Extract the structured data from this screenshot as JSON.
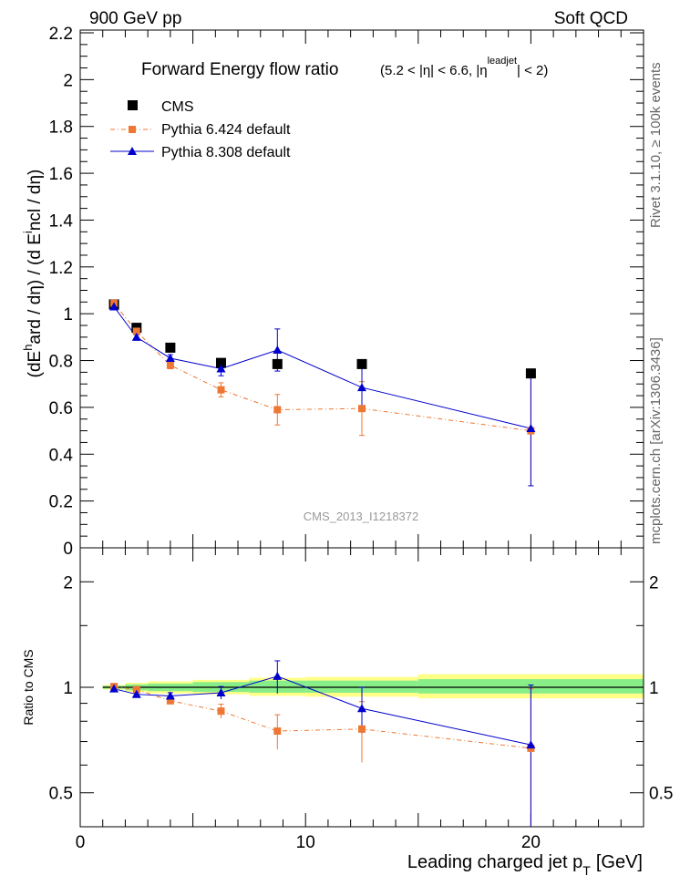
{
  "header": {
    "left": "900 GeV pp",
    "right": "Soft QCD"
  },
  "side_labels": {
    "rivet": "Rivet 3.1.10, ≥ 100k events",
    "mcplots": "mcplots.cern.ch [arXiv:1306.3436]"
  },
  "title": {
    "main": "Forward Energy flow ratio",
    "sub_prefix": "(5.2 < |η| < 6.6, |η",
    "sub_sup": "leadjet",
    "sub_suffix": "| < 2)"
  },
  "analysis_id": "CMS_2013_I1218372",
  "chart_data": [
    {
      "type": "scatter",
      "panel": "main",
      "ylabel": "(dE^hard / dη) / (d E^incl / dη)",
      "ylim": [
        0,
        2.2
      ],
      "xlim": [
        0,
        25
      ],
      "yticks": [
        {
          "v": 0,
          "label": "0"
        },
        {
          "v": 0.2,
          "label": "0.2"
        },
        {
          "v": 0.4,
          "label": "0.4"
        },
        {
          "v": 0.6,
          "label": "0.6"
        },
        {
          "v": 0.8,
          "label": "0.8"
        },
        {
          "v": 1.0,
          "label": "1"
        },
        {
          "v": 1.2,
          "label": "1.2"
        },
        {
          "v": 1.4,
          "label": "1.4"
        },
        {
          "v": 1.6,
          "label": "1.6"
        },
        {
          "v": 1.8,
          "label": "1.8"
        },
        {
          "v": 2.0,
          "label": "2"
        },
        {
          "v": 2.2,
          "label": "2.2"
        }
      ],
      "legend": [
        {
          "key": "cms",
          "label": "CMS"
        },
        {
          "key": "py6",
          "label": "Pythia 6.424 default"
        },
        {
          "key": "py8",
          "label": "Pythia 8.308 default"
        }
      ],
      "series": [
        {
          "name": "CMS",
          "key": "cms",
          "color": "#000000",
          "points": [
            {
              "x": 1.5,
              "y": 1.04
            },
            {
              "x": 2.5,
              "y": 0.94
            },
            {
              "x": 4.0,
              "y": 0.855
            },
            {
              "x": 6.25,
              "y": 0.79
            },
            {
              "x": 8.75,
              "y": 0.785
            },
            {
              "x": 12.5,
              "y": 0.785
            },
            {
              "x": 20.0,
              "y": 0.745
            }
          ]
        },
        {
          "name": "Pythia 6.424 default",
          "key": "py6",
          "color": "#ee7733",
          "points": [
            {
              "x": 1.5,
              "y": 1.045,
              "err": 0.0
            },
            {
              "x": 2.5,
              "y": 0.925,
              "err": 0.01
            },
            {
              "x": 4.0,
              "y": 0.78,
              "err": 0.015
            },
            {
              "x": 6.25,
              "y": 0.675,
              "err": 0.03
            },
            {
              "x": 8.75,
              "y": 0.59,
              "err": 0.065
            },
            {
              "x": 12.5,
              "y": 0.595,
              "err": 0.115
            },
            {
              "x": 20.0,
              "y": 0.5,
              "err": 0.235
            }
          ]
        },
        {
          "name": "Pythia 8.308 default",
          "key": "py8",
          "color": "#0000cc",
          "points": [
            {
              "x": 1.5,
              "y": 1.03,
              "err": 0.0
            },
            {
              "x": 2.5,
              "y": 0.9,
              "err": 0.01
            },
            {
              "x": 4.0,
              "y": 0.81,
              "err": 0.015
            },
            {
              "x": 6.25,
              "y": 0.765,
              "err": 0.03
            },
            {
              "x": 8.75,
              "y": 0.845,
              "err": 0.09
            },
            {
              "x": 12.5,
              "y": 0.685,
              "err": 0.1
            },
            {
              "x": 20.0,
              "y": 0.51,
              "err": 0.245
            }
          ]
        }
      ]
    },
    {
      "type": "scatter",
      "panel": "ratio",
      "ylabel": "Ratio to CMS",
      "xlabel": "Leading charged jet p",
      "xlabel_sub": "T",
      "xlabel_unit": "[GeV]",
      "ylim": [
        0.4,
        2.5
      ],
      "yscale": "log",
      "xlim": [
        0,
        25
      ],
      "yticks": [
        {
          "v": 0.5,
          "label": "0.5"
        },
        {
          "v": 1.0,
          "label": "1"
        },
        {
          "v": 2.0,
          "label": "2"
        }
      ],
      "xticks": [
        {
          "v": 0,
          "label": "0"
        },
        {
          "v": 10,
          "label": "10"
        },
        {
          "v": 20,
          "label": "20"
        }
      ],
      "bands": [
        {
          "x0": 1,
          "x1": 2,
          "inner": [
            0.99,
            1.01
          ],
          "outer": [
            0.985,
            1.015
          ]
        },
        {
          "x0": 2,
          "x1": 3,
          "inner": [
            0.98,
            1.02
          ],
          "outer": [
            0.97,
            1.03
          ]
        },
        {
          "x0": 3,
          "x1": 5,
          "inner": [
            0.975,
            1.025
          ],
          "outer": [
            0.96,
            1.04
          ]
        },
        {
          "x0": 5,
          "x1": 7.5,
          "inner": [
            0.97,
            1.035
          ],
          "outer": [
            0.955,
            1.05
          ]
        },
        {
          "x0": 7.5,
          "x1": 10,
          "inner": [
            0.965,
            1.045
          ],
          "outer": [
            0.945,
            1.065
          ]
        },
        {
          "x0": 10,
          "x1": 15,
          "inner": [
            0.965,
            1.045
          ],
          "outer": [
            0.94,
            1.07
          ]
        },
        {
          "x0": 15,
          "x1": 25,
          "inner": [
            0.96,
            1.055
          ],
          "outer": [
            0.93,
            1.09
          ]
        }
      ],
      "series": [
        {
          "name": "Pythia 6.424 default",
          "key": "py6",
          "color": "#ee7733",
          "points": [
            {
              "x": 1.5,
              "y": 1.005,
              "err": 0.0
            },
            {
              "x": 2.5,
              "y": 0.985,
              "err": 0.01
            },
            {
              "x": 4.0,
              "y": 0.915,
              "err": 0.02
            },
            {
              "x": 6.25,
              "y": 0.855,
              "err": 0.04
            },
            {
              "x": 8.75,
              "y": 0.75,
              "err": 0.085
            },
            {
              "x": 12.5,
              "y": 0.76,
              "err": 0.15
            },
            {
              "x": 20.0,
              "y": 0.67,
              "err": 0.32
            }
          ]
        },
        {
          "name": "Pythia 8.308 default",
          "key": "py8",
          "color": "#0000cc",
          "points": [
            {
              "x": 1.5,
              "y": 0.99,
              "err": 0.0
            },
            {
              "x": 2.5,
              "y": 0.955,
              "err": 0.01
            },
            {
              "x": 4.0,
              "y": 0.945,
              "err": 0.02
            },
            {
              "x": 6.25,
              "y": 0.965,
              "err": 0.04
            },
            {
              "x": 8.75,
              "y": 1.075,
              "err": 0.115
            },
            {
              "x": 12.5,
              "y": 0.87,
              "err": 0.13
            },
            {
              "x": 20.0,
              "y": 0.685,
              "err": 0.33
            }
          ]
        }
      ]
    }
  ]
}
